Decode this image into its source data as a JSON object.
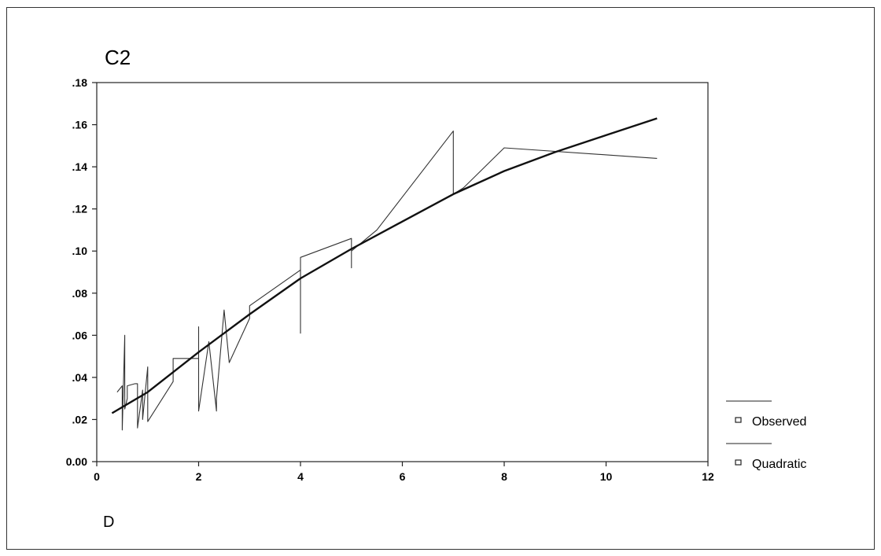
{
  "chart_data": {
    "type": "line",
    "title": "C2",
    "xlabel": "D",
    "ylabel": "",
    "xlim": [
      0,
      12
    ],
    "ylim": [
      0,
      0.18
    ],
    "x_ticks": [
      0,
      2,
      4,
      6,
      8,
      10,
      12
    ],
    "x_tick_labels": [
      "0",
      "2",
      "4",
      "6",
      "8",
      "10",
      "12"
    ],
    "y_ticks": [
      0,
      0.02,
      0.04,
      0.06,
      0.08,
      0.1,
      0.12,
      0.14,
      0.16,
      0.18
    ],
    "y_tick_labels": [
      "0.00",
      ".02",
      ".04",
      ".06",
      ".08",
      ".10",
      ".12",
      ".14",
      ".16",
      ".18"
    ],
    "grid": false,
    "legend": "right",
    "series": [
      {
        "name": "Observed",
        "x": [
          0.4,
          0.5,
          0.5,
          0.55,
          0.55,
          0.6,
          0.6,
          0.75,
          0.8,
          0.8,
          0.9,
          0.9,
          1.0,
          1.0,
          1.0,
          1.5,
          1.5,
          1.5,
          2.0,
          2.0,
          2.0,
          2.2,
          2.35,
          2.35,
          2.5,
          2.6,
          3.0,
          3.0,
          4.0,
          4.0,
          4.0,
          5.0,
          5.0,
          5.0,
          5.5,
          7.0,
          7.0,
          7.2,
          8.0,
          11.0
        ],
        "y": [
          0.033,
          0.036,
          0.015,
          0.06,
          0.025,
          0.03,
          0.036,
          0.037,
          0.037,
          0.016,
          0.034,
          0.02,
          0.045,
          0.036,
          0.019,
          0.038,
          0.049,
          0.049,
          0.049,
          0.064,
          0.024,
          0.057,
          0.024,
          0.03,
          0.072,
          0.047,
          0.068,
          0.074,
          0.091,
          0.061,
          0.097,
          0.106,
          0.092,
          0.1,
          0.11,
          0.157,
          0.127,
          0.13,
          0.149,
          0.144
        ]
      },
      {
        "name": "Quadratic",
        "x": [
          0.3,
          1,
          2,
          3,
          4,
          5,
          6,
          7,
          8,
          9,
          10,
          11
        ],
        "y": [
          0.023,
          0.033,
          0.052,
          0.07,
          0.087,
          0.101,
          0.114,
          0.127,
          0.138,
          0.147,
          0.155,
          0.163
        ]
      }
    ]
  }
}
